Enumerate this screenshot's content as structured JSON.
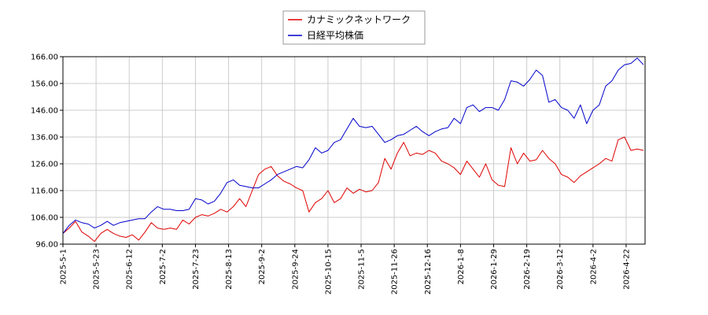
{
  "chart_data": {
    "type": "line",
    "title": "",
    "xlabel": "",
    "ylabel": "",
    "x_range": [
      "2025-05-01",
      "2026-05-05"
    ],
    "ylim": [
      96,
      166
    ],
    "y_ticks": [
      96,
      106,
      116,
      126,
      136,
      146,
      156,
      166
    ],
    "y_tick_labels": [
      "96.00",
      "106.00",
      "116.00",
      "126.00",
      "136.00",
      "146.00",
      "156.00",
      "166.00"
    ],
    "x_ticks": [
      "2025-05-01",
      "2025-05-22",
      "2025-06-12",
      "2025-07-03",
      "2025-07-24",
      "2025-08-14",
      "2025-09-04",
      "2025-09-25",
      "2025-10-16",
      "2025-11-06",
      "2025-11-27",
      "2025-12-18",
      "2026-01-08",
      "2026-01-29",
      "2026-02-19",
      "2026-03-12",
      "2026-04-02",
      "2026-04-23"
    ],
    "x_tick_labels": [
      "2025-5-1",
      "2025-5-23",
      "2025-6-12",
      "2025-7-2",
      "2025-7-23",
      "2025-8-13",
      "2025-9-2",
      "2025-9-24",
      "2025-10-15",
      "2025-11-5",
      "2025-11-26",
      "2025-12-16",
      "2026-1-8",
      "2026-1-29",
      "2026-2-19",
      "2026-3-12",
      "2026-4-2",
      "2026-4-22"
    ],
    "grid": true,
    "legend_position": "top-center",
    "series": [
      {
        "name": "カナミックネットワーク",
        "color": "#e00000",
        "points": [
          [
            "2025-05-01",
            100.0
          ],
          [
            "2025-05-05",
            102.0
          ],
          [
            "2025-05-09",
            104.5
          ],
          [
            "2025-05-13",
            100.5
          ],
          [
            "2025-05-17",
            99.0
          ],
          [
            "2025-05-21",
            97.0
          ],
          [
            "2025-05-25",
            100.0
          ],
          [
            "2025-05-29",
            101.5
          ],
          [
            "2025-06-02",
            100.0
          ],
          [
            "2025-06-06",
            99.0
          ],
          [
            "2025-06-10",
            98.5
          ],
          [
            "2025-06-14",
            99.5
          ],
          [
            "2025-06-18",
            97.5
          ],
          [
            "2025-06-22",
            100.5
          ],
          [
            "2025-06-26",
            104.0
          ],
          [
            "2025-06-30",
            102.0
          ],
          [
            "2025-07-04",
            101.5
          ],
          [
            "2025-07-08",
            102.0
          ],
          [
            "2025-07-12",
            101.5
          ],
          [
            "2025-07-16",
            105.0
          ],
          [
            "2025-07-20",
            103.5
          ],
          [
            "2025-07-24",
            106.0
          ],
          [
            "2025-07-28",
            107.0
          ],
          [
            "2025-08-01",
            106.5
          ],
          [
            "2025-08-05",
            107.5
          ],
          [
            "2025-08-09",
            109.0
          ],
          [
            "2025-08-13",
            108.0
          ],
          [
            "2025-08-17",
            110.0
          ],
          [
            "2025-08-21",
            113.0
          ],
          [
            "2025-08-25",
            110.0
          ],
          [
            "2025-08-29",
            116.0
          ],
          [
            "2025-09-02",
            122.0
          ],
          [
            "2025-09-06",
            124.0
          ],
          [
            "2025-09-10",
            125.0
          ],
          [
            "2025-09-14",
            121.5
          ],
          [
            "2025-09-18",
            119.5
          ],
          [
            "2025-09-22",
            118.5
          ],
          [
            "2025-09-26",
            117.0
          ],
          [
            "2025-09-30",
            116.0
          ],
          [
            "2025-10-04",
            108.0
          ],
          [
            "2025-10-08",
            111.5
          ],
          [
            "2025-10-12",
            113.0
          ],
          [
            "2025-10-16",
            116.0
          ],
          [
            "2025-10-20",
            111.5
          ],
          [
            "2025-10-24",
            113.0
          ],
          [
            "2025-10-28",
            117.0
          ],
          [
            "2025-11-01",
            115.0
          ],
          [
            "2025-11-05",
            116.5
          ],
          [
            "2025-11-09",
            115.5
          ],
          [
            "2025-11-13",
            116.0
          ],
          [
            "2025-11-17",
            119.0
          ],
          [
            "2025-11-21",
            128.0
          ],
          [
            "2025-11-25",
            124.0
          ],
          [
            "2025-11-29",
            130.0
          ],
          [
            "2025-12-03",
            134.0
          ],
          [
            "2025-12-07",
            129.0
          ],
          [
            "2025-12-11",
            130.0
          ],
          [
            "2025-12-15",
            129.5
          ],
          [
            "2025-12-19",
            131.0
          ],
          [
            "2025-12-23",
            130.0
          ],
          [
            "2025-12-27",
            127.0
          ],
          [
            "2025-12-31",
            126.0
          ],
          [
            "2026-01-04",
            124.5
          ],
          [
            "2026-01-08",
            122.0
          ],
          [
            "2026-01-12",
            127.0
          ],
          [
            "2026-01-16",
            124.0
          ],
          [
            "2026-01-20",
            121.0
          ],
          [
            "2026-01-24",
            126.0
          ],
          [
            "2026-01-28",
            120.0
          ],
          [
            "2026-02-01",
            118.0
          ],
          [
            "2026-02-05",
            117.5
          ],
          [
            "2026-02-09",
            132.0
          ],
          [
            "2026-02-13",
            126.0
          ],
          [
            "2026-02-17",
            130.0
          ],
          [
            "2026-02-21",
            127.0
          ],
          [
            "2026-02-25",
            127.5
          ],
          [
            "2026-03-01",
            131.0
          ],
          [
            "2026-03-05",
            128.0
          ],
          [
            "2026-03-09",
            126.0
          ],
          [
            "2026-03-13",
            122.0
          ],
          [
            "2026-03-17",
            121.0
          ],
          [
            "2026-03-21",
            119.0
          ],
          [
            "2026-03-25",
            121.5
          ],
          [
            "2026-03-29",
            123.0
          ],
          [
            "2026-04-02",
            124.5
          ],
          [
            "2026-04-06",
            126.0
          ],
          [
            "2026-04-10",
            128.0
          ],
          [
            "2026-04-14",
            127.0
          ],
          [
            "2026-04-18",
            135.0
          ],
          [
            "2026-04-22",
            136.0
          ],
          [
            "2026-04-26",
            131.0
          ],
          [
            "2026-04-30",
            131.5
          ],
          [
            "2026-05-04",
            131.0
          ]
        ]
      },
      {
        "name": "日経平均株価",
        "color": "#0000cc",
        "points": [
          [
            "2025-05-01",
            100.0
          ],
          [
            "2025-05-05",
            103.0
          ],
          [
            "2025-05-09",
            105.0
          ],
          [
            "2025-05-13",
            104.0
          ],
          [
            "2025-05-17",
            103.5
          ],
          [
            "2025-05-21",
            102.0
          ],
          [
            "2025-05-25",
            103.0
          ],
          [
            "2025-05-29",
            104.5
          ],
          [
            "2025-06-02",
            103.0
          ],
          [
            "2025-06-06",
            104.0
          ],
          [
            "2025-06-10",
            104.5
          ],
          [
            "2025-06-14",
            105.0
          ],
          [
            "2025-06-18",
            105.5
          ],
          [
            "2025-06-22",
            105.5
          ],
          [
            "2025-06-26",
            108.0
          ],
          [
            "2025-06-30",
            110.0
          ],
          [
            "2025-07-04",
            109.0
          ],
          [
            "2025-07-08",
            109.0
          ],
          [
            "2025-07-12",
            108.5
          ],
          [
            "2025-07-16",
            108.5
          ],
          [
            "2025-07-20",
            109.0
          ],
          [
            "2025-07-24",
            113.0
          ],
          [
            "2025-07-28",
            112.5
          ],
          [
            "2025-08-01",
            111.0
          ],
          [
            "2025-08-05",
            112.0
          ],
          [
            "2025-08-09",
            115.0
          ],
          [
            "2025-08-13",
            119.0
          ],
          [
            "2025-08-17",
            120.0
          ],
          [
            "2025-08-21",
            118.0
          ],
          [
            "2025-08-25",
            117.5
          ],
          [
            "2025-08-29",
            117.0
          ],
          [
            "2025-09-02",
            117.0
          ],
          [
            "2025-09-06",
            118.5
          ],
          [
            "2025-09-10",
            120.0
          ],
          [
            "2025-09-14",
            122.0
          ],
          [
            "2025-09-18",
            123.0
          ],
          [
            "2025-09-22",
            124.0
          ],
          [
            "2025-09-26",
            125.0
          ],
          [
            "2025-09-30",
            124.5
          ],
          [
            "2025-10-04",
            127.5
          ],
          [
            "2025-10-08",
            132.0
          ],
          [
            "2025-10-12",
            130.0
          ],
          [
            "2025-10-16",
            131.0
          ],
          [
            "2025-10-20",
            134.0
          ],
          [
            "2025-10-24",
            135.0
          ],
          [
            "2025-10-28",
            139.0
          ],
          [
            "2025-11-01",
            143.0
          ],
          [
            "2025-11-05",
            140.0
          ],
          [
            "2025-11-09",
            139.5
          ],
          [
            "2025-11-13",
            140.0
          ],
          [
            "2025-11-17",
            137.0
          ],
          [
            "2025-11-21",
            134.0
          ],
          [
            "2025-11-25",
            135.0
          ],
          [
            "2025-11-29",
            136.5
          ],
          [
            "2025-12-03",
            137.0
          ],
          [
            "2025-12-07",
            138.5
          ],
          [
            "2025-12-11",
            140.0
          ],
          [
            "2025-12-15",
            138.0
          ],
          [
            "2025-12-19",
            136.5
          ],
          [
            "2025-12-23",
            138.0
          ],
          [
            "2025-12-27",
            139.0
          ],
          [
            "2025-12-31",
            139.5
          ],
          [
            "2026-01-04",
            143.0
          ],
          [
            "2026-01-08",
            141.0
          ],
          [
            "2026-01-12",
            147.0
          ],
          [
            "2026-01-16",
            148.0
          ],
          [
            "2026-01-20",
            145.5
          ],
          [
            "2026-01-24",
            147.0
          ],
          [
            "2026-01-28",
            147.0
          ],
          [
            "2026-02-01",
            146.0
          ],
          [
            "2026-02-05",
            150.0
          ],
          [
            "2026-02-09",
            157.0
          ],
          [
            "2026-02-13",
            156.5
          ],
          [
            "2026-02-17",
            155.0
          ],
          [
            "2026-02-21",
            157.5
          ],
          [
            "2026-02-25",
            161.0
          ],
          [
            "2026-03-01",
            159.0
          ],
          [
            "2026-03-05",
            149.0
          ],
          [
            "2026-03-09",
            150.0
          ],
          [
            "2026-03-13",
            147.0
          ],
          [
            "2026-03-17",
            146.0
          ],
          [
            "2026-03-21",
            143.0
          ],
          [
            "2026-03-25",
            148.0
          ],
          [
            "2026-03-29",
            141.0
          ],
          [
            "2026-04-02",
            146.0
          ],
          [
            "2026-04-06",
            148.0
          ],
          [
            "2026-04-10",
            155.0
          ],
          [
            "2026-04-14",
            157.0
          ],
          [
            "2026-04-18",
            161.0
          ],
          [
            "2026-04-22",
            163.0
          ],
          [
            "2026-04-26",
            163.5
          ],
          [
            "2026-04-30",
            165.5
          ],
          [
            "2026-05-04",
            163.0
          ]
        ]
      }
    ]
  }
}
